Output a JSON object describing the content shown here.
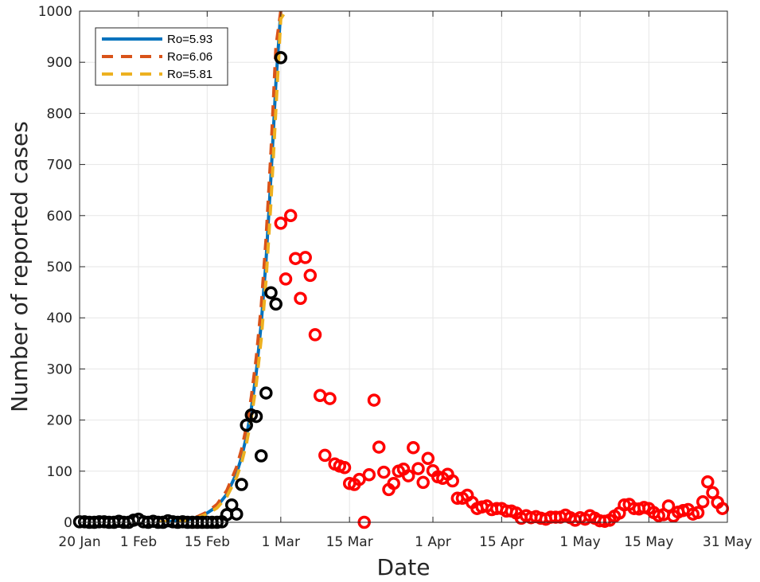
{
  "chart_data": {
    "type": "scatter",
    "xlabel": "Date",
    "ylabel": "Number of reported cases",
    "xlim": [
      "2020-01-20",
      "2020-05-31"
    ],
    "ylim": [
      0,
      1000
    ],
    "grid": true,
    "legend_placement": "top-left",
    "x_ticks": [
      "20 Jan",
      "1 Feb",
      "15 Feb",
      "1 Mar",
      "15 Mar",
      "1 Apr",
      "15 Apr",
      "1 May",
      "15 May",
      "31 May"
    ],
    "y_ticks": [
      "0",
      "100",
      "200",
      "300",
      "400",
      "500",
      "600",
      "700",
      "800",
      "900",
      "1000"
    ],
    "tick_dates": [
      "2020-01-20",
      "2020-02-01",
      "2020-02-15",
      "2020-03-01",
      "2020-03-15",
      "2020-04-01",
      "2020-04-15",
      "2020-05-01",
      "2020-05-15",
      "2020-05-31"
    ],
    "series": [
      {
        "name": "Ro=5.93",
        "kind": "line",
        "style": "solid",
        "color": "#0072BD",
        "points": [
          [
            "2020-02-05",
            0
          ],
          [
            "2020-02-08",
            2
          ],
          [
            "2020-02-11",
            5
          ],
          [
            "2020-02-13",
            10
          ],
          [
            "2020-02-15",
            18
          ],
          [
            "2020-02-17",
            31
          ],
          [
            "2020-02-19",
            55
          ],
          [
            "2020-02-21",
            96
          ],
          [
            "2020-02-22",
            127
          ],
          [
            "2020-02-23",
            168
          ],
          [
            "2020-02-24",
            222
          ],
          [
            "2020-02-25",
            293
          ],
          [
            "2020-02-26",
            388
          ],
          [
            "2020-02-27",
            512
          ],
          [
            "2020-02-28",
            677
          ],
          [
            "2020-02-29",
            860
          ],
          [
            "2020-03-01",
            1000
          ]
        ]
      },
      {
        "name": "Ro=6.06",
        "kind": "line",
        "style": "dashed",
        "color": "#D95319",
        "points": [
          [
            "2020-02-05",
            0
          ],
          [
            "2020-02-08",
            3
          ],
          [
            "2020-02-11",
            6
          ],
          [
            "2020-02-13",
            11
          ],
          [
            "2020-02-15",
            20
          ],
          [
            "2020-02-17",
            35
          ],
          [
            "2020-02-19",
            62
          ],
          [
            "2020-02-21",
            108
          ],
          [
            "2020-02-22",
            142
          ],
          [
            "2020-02-23",
            187
          ],
          [
            "2020-02-24",
            245
          ],
          [
            "2020-02-25",
            322
          ],
          [
            "2020-02-26",
            422
          ],
          [
            "2020-02-27",
            555
          ],
          [
            "2020-02-28",
            725
          ],
          [
            "2020-02-29",
            930
          ],
          [
            "2020-03-01",
            1000
          ]
        ]
      },
      {
        "name": "Ro=5.81",
        "kind": "line",
        "style": "dashed",
        "color": "#EDB120",
        "points": [
          [
            "2020-02-05",
            0
          ],
          [
            "2020-02-08",
            2
          ],
          [
            "2020-02-11",
            4
          ],
          [
            "2020-02-13",
            9
          ],
          [
            "2020-02-15",
            16
          ],
          [
            "2020-02-17",
            28
          ],
          [
            "2020-02-19",
            50
          ],
          [
            "2020-02-21",
            88
          ],
          [
            "2020-02-22",
            116
          ],
          [
            "2020-02-23",
            154
          ],
          [
            "2020-02-24",
            204
          ],
          [
            "2020-02-25",
            270
          ],
          [
            "2020-02-26",
            358
          ],
          [
            "2020-02-27",
            473
          ],
          [
            "2020-02-28",
            627
          ],
          [
            "2020-02-29",
            808
          ],
          [
            "2020-03-01",
            985
          ],
          [
            "2020-03-02",
            1000
          ]
        ]
      },
      {
        "kind": "markers",
        "color": "#000000",
        "points": [
          [
            "2020-01-20",
            1
          ],
          [
            "2020-01-21",
            1
          ],
          [
            "2020-01-22",
            0
          ],
          [
            "2020-01-23",
            0
          ],
          [
            "2020-01-24",
            1
          ],
          [
            "2020-01-25",
            1
          ],
          [
            "2020-01-26",
            0
          ],
          [
            "2020-01-27",
            0
          ],
          [
            "2020-01-28",
            2
          ],
          [
            "2020-01-29",
            0
          ],
          [
            "2020-01-30",
            0
          ],
          [
            "2020-01-31",
            4
          ],
          [
            "2020-02-01",
            6
          ],
          [
            "2020-02-02",
            1
          ],
          [
            "2020-02-03",
            0
          ],
          [
            "2020-02-04",
            2
          ],
          [
            "2020-02-05",
            0
          ],
          [
            "2020-02-06",
            0
          ],
          [
            "2020-02-07",
            3
          ],
          [
            "2020-02-08",
            1
          ],
          [
            "2020-02-09",
            0
          ],
          [
            "2020-02-10",
            1
          ],
          [
            "2020-02-11",
            0
          ],
          [
            "2020-02-12",
            0
          ],
          [
            "2020-02-13",
            0
          ],
          [
            "2020-02-14",
            0
          ],
          [
            "2020-02-15",
            0
          ],
          [
            "2020-02-16",
            0
          ],
          [
            "2020-02-17",
            0
          ],
          [
            "2020-02-18",
            1
          ],
          [
            "2020-02-19",
            15
          ],
          [
            "2020-02-20",
            34
          ],
          [
            "2020-02-21",
            16
          ],
          [
            "2020-02-22",
            74
          ],
          [
            "2020-02-23",
            190
          ],
          [
            "2020-02-24",
            210
          ],
          [
            "2020-02-25",
            207
          ],
          [
            "2020-02-26",
            130
          ],
          [
            "2020-02-27",
            253
          ],
          [
            "2020-02-28",
            449
          ],
          [
            "2020-02-29",
            427
          ],
          [
            "2020-03-01",
            909
          ]
        ]
      },
      {
        "kind": "markers",
        "color": "#FF0000",
        "points": [
          [
            "2020-03-01",
            585
          ],
          [
            "2020-03-02",
            476
          ],
          [
            "2020-03-03",
            600
          ],
          [
            "2020-03-04",
            516
          ],
          [
            "2020-03-05",
            438
          ],
          [
            "2020-03-06",
            518
          ],
          [
            "2020-03-07",
            483
          ],
          [
            "2020-03-08",
            367
          ],
          [
            "2020-03-09",
            248
          ],
          [
            "2020-03-10",
            131
          ],
          [
            "2020-03-11",
            242
          ],
          [
            "2020-03-12",
            114
          ],
          [
            "2020-03-13",
            110
          ],
          [
            "2020-03-14",
            107
          ],
          [
            "2020-03-15",
            76
          ],
          [
            "2020-03-16",
            74
          ],
          [
            "2020-03-17",
            84
          ],
          [
            "2020-03-18",
            0
          ],
          [
            "2020-03-19",
            93
          ],
          [
            "2020-03-20",
            239
          ],
          [
            "2020-03-21",
            147
          ],
          [
            "2020-03-22",
            98
          ],
          [
            "2020-03-23",
            64
          ],
          [
            "2020-03-24",
            76
          ],
          [
            "2020-03-25",
            100
          ],
          [
            "2020-03-26",
            104
          ],
          [
            "2020-03-27",
            91
          ],
          [
            "2020-03-28",
            146
          ],
          [
            "2020-03-29",
            105
          ],
          [
            "2020-03-30",
            78
          ],
          [
            "2020-03-31",
            125
          ],
          [
            "2020-04-01",
            101
          ],
          [
            "2020-04-02",
            89
          ],
          [
            "2020-04-03",
            86
          ],
          [
            "2020-04-04",
            94
          ],
          [
            "2020-04-05",
            81
          ],
          [
            "2020-04-06",
            47
          ],
          [
            "2020-04-07",
            47
          ],
          [
            "2020-04-08",
            53
          ],
          [
            "2020-04-09",
            39
          ],
          [
            "2020-04-10",
            27
          ],
          [
            "2020-04-11",
            30
          ],
          [
            "2020-04-12",
            32
          ],
          [
            "2020-04-13",
            25
          ],
          [
            "2020-04-14",
            27
          ],
          [
            "2020-04-15",
            27
          ],
          [
            "2020-04-16",
            22
          ],
          [
            "2020-04-17",
            22
          ],
          [
            "2020-04-18",
            18
          ],
          [
            "2020-04-19",
            8
          ],
          [
            "2020-04-20",
            13
          ],
          [
            "2020-04-21",
            9
          ],
          [
            "2020-04-22",
            11
          ],
          [
            "2020-04-23",
            8
          ],
          [
            "2020-04-24",
            6
          ],
          [
            "2020-04-25",
            10
          ],
          [
            "2020-04-26",
            10
          ],
          [
            "2020-04-27",
            10
          ],
          [
            "2020-04-28",
            14
          ],
          [
            "2020-04-29",
            9
          ],
          [
            "2020-04-30",
            4
          ],
          [
            "2020-05-01",
            9
          ],
          [
            "2020-05-02",
            6
          ],
          [
            "2020-05-03",
            13
          ],
          [
            "2020-05-04",
            8
          ],
          [
            "2020-05-05",
            3
          ],
          [
            "2020-05-06",
            2
          ],
          [
            "2020-05-07",
            4
          ],
          [
            "2020-05-08",
            12
          ],
          [
            "2020-05-09",
            18
          ],
          [
            "2020-05-10",
            34
          ],
          [
            "2020-05-11",
            35
          ],
          [
            "2020-05-12",
            27
          ],
          [
            "2020-05-13",
            26
          ],
          [
            "2020-05-14",
            29
          ],
          [
            "2020-05-15",
            27
          ],
          [
            "2020-05-16",
            19
          ],
          [
            "2020-05-17",
            13
          ],
          [
            "2020-05-18",
            15
          ],
          [
            "2020-05-19",
            32
          ],
          [
            "2020-05-20",
            12
          ],
          [
            "2020-05-21",
            20
          ],
          [
            "2020-05-22",
            23
          ],
          [
            "2020-05-23",
            25
          ],
          [
            "2020-05-24",
            16
          ],
          [
            "2020-05-25",
            19
          ],
          [
            "2020-05-26",
            40
          ],
          [
            "2020-05-27",
            79
          ],
          [
            "2020-05-28",
            58
          ],
          [
            "2020-05-29",
            39
          ],
          [
            "2020-05-30",
            27
          ]
        ]
      }
    ]
  }
}
